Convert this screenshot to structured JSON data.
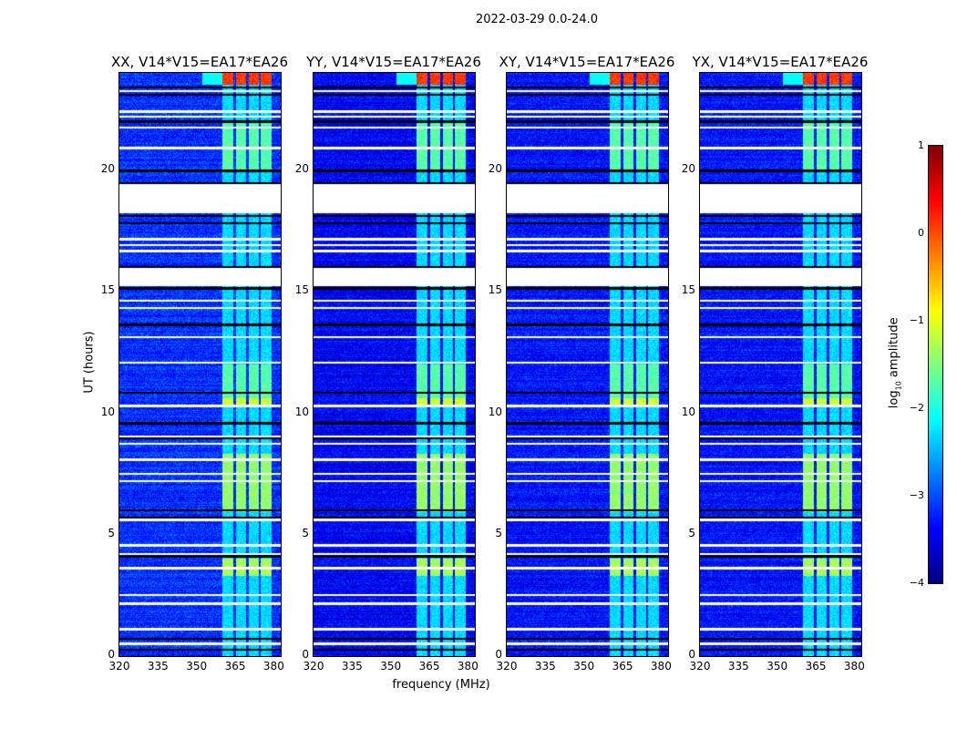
{
  "figure_title": "2022-03-29 0.0-24.0",
  "chart_data": {
    "type": "heatmap",
    "title": "2022-03-29 0.0-24.0",
    "xlabel": "frequency (MHz)",
    "ylabel": "UT (hours)",
    "xlim": [
      320,
      382.7
    ],
    "ylim": [
      0,
      24
    ],
    "xticks": [
      "320",
      "335",
      "350",
      "365",
      "380"
    ],
    "yticks": [
      "0",
      "5",
      "10",
      "15",
      "20"
    ],
    "panels": [
      {
        "title": "XX, V14*V15=EA17*EA26",
        "base_level": -3.15
      },
      {
        "title": "YY, V14*V15=EA17*EA26",
        "base_level": -3.4
      },
      {
        "title": "XY, V14*V15=EA17*EA26",
        "base_level": -3.3
      },
      {
        "title": "YX, V14*V15=EA17*EA26",
        "base_level": -3.3
      }
    ],
    "rfi_band_mhz": [
      360,
      379
    ],
    "rfi_gaps_mhz": [
      364.6,
      369.6,
      374.4
    ],
    "rfi_enhanced_hours": [
      [
        23.5,
        24,
        2.4
      ],
      [
        3.3,
        4.0,
        1.0
      ],
      [
        5.9,
        8.3,
        0.9
      ],
      [
        10.3,
        10.6,
        1.2
      ],
      [
        10.6,
        12.0,
        0.6
      ],
      [
        20.0,
        22.0,
        0.6
      ]
    ],
    "flagged_hours": [
      [
        18.2,
        19.4
      ],
      [
        15.2,
        15.95
      ]
    ],
    "flagged_line_hours": [
      23.23,
      22.4,
      22.18,
      21.73,
      20.9,
      17.15,
      16.92,
      16.66,
      14.6,
      14.3,
      13.1,
      12.05,
      10.28,
      9.04,
      8.74,
      8.07,
      7.47,
      7.17,
      5.59,
      4.54,
      4.17,
      3.6,
      2.51,
      2.14,
      1.09,
      0.49
    ],
    "gap_line_hours": [
      23.38,
      23.08,
      21.99,
      19.96,
      19.47,
      18.12,
      17.82,
      16.02,
      15.12,
      13.62,
      10.84,
      9.57,
      8.97,
      5.97,
      5.67,
      4.09,
      0.71,
      0.26
    ],
    "colorbar": {
      "label": "log10 amplitude",
      "label_main": "log",
      "label_sub": "10",
      "label_rest": " amplitude",
      "colormap": "jet",
      "range": [
        -4,
        1
      ],
      "ticks": [
        "1",
        "0",
        "−1",
        "−2",
        "−3",
        "−4"
      ]
    }
  }
}
